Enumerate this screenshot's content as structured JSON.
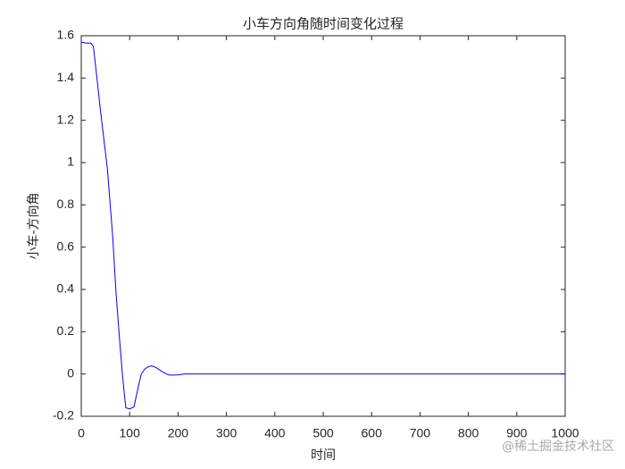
{
  "chart_data": {
    "type": "line",
    "title": "小车方向角随时间变化过程",
    "x_label": "时间",
    "y_label": "小车-方向角",
    "watermark": "@稀土掘金技术社区",
    "x": [
      0,
      10,
      20,
      25,
      30,
      40,
      54,
      65,
      72,
      80,
      85,
      92,
      100,
      109,
      116,
      124,
      132,
      140,
      146,
      155,
      168,
      176,
      183,
      192,
      200,
      215,
      240,
      300,
      500,
      1000
    ],
    "series": [
      {
        "name": "小车方向角",
        "color": "#0000ff",
        "values": [
          1.57,
          1.565,
          1.565,
          1.55,
          1.45,
          1.24,
          0.97,
          0.65,
          0.38,
          0.14,
          0.0,
          -0.16,
          -0.165,
          -0.155,
          -0.08,
          0.0,
          0.025,
          0.036,
          0.038,
          0.03,
          0.01,
          0.0,
          -0.005,
          -0.005,
          -0.004,
          0.0,
          0.0,
          0.0,
          0.0,
          0.0
        ]
      }
    ],
    "xlim": [
      0,
      1000
    ],
    "ylim": [
      -0.2,
      1.6
    ],
    "xticks": [
      0,
      100,
      200,
      300,
      400,
      500,
      600,
      700,
      800,
      900,
      1000
    ],
    "yticks": [
      -0.2,
      0,
      0.2,
      0.4,
      0.6,
      0.8,
      1,
      1.2,
      1.4,
      1.6
    ],
    "grid": false
  }
}
